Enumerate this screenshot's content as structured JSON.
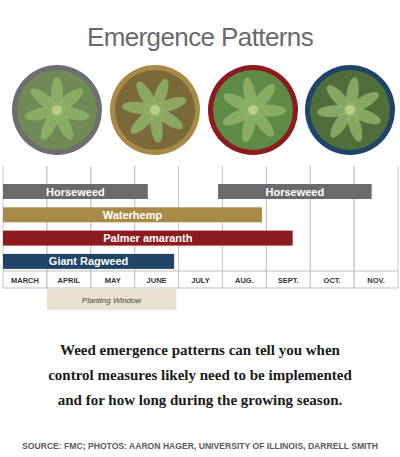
{
  "chart_data": {
    "type": "range_bar",
    "orientation": "horizontal",
    "title": "Emergence Patterns",
    "xlim": [
      0,
      9
    ],
    "xticks": [
      {
        "value": 0.5,
        "label": "MARCH"
      },
      {
        "value": 1.5,
        "label": "APRIL"
      },
      {
        "value": 2.5,
        "label": "MAY"
      },
      {
        "value": 3.5,
        "label": "JUNE"
      },
      {
        "value": 4.5,
        "label": "JULY"
      },
      {
        "value": 5.5,
        "label": "AUG."
      },
      {
        "value": 6.5,
        "label": "SEPT."
      },
      {
        "value": 7.5,
        "label": "OCT."
      },
      {
        "value": 8.5,
        "label": "NOV."
      }
    ],
    "grid": true,
    "series": [
      {
        "name": "Horseweed",
        "color": "#6b6b6d",
        "ranges": [
          [
            0,
            3.3
          ],
          [
            4.9,
            8.4
          ]
        ]
      },
      {
        "name": "Waterhemp",
        "color": "#a98a47",
        "ranges": [
          [
            0,
            5.9
          ]
        ]
      },
      {
        "name": "Palmer amaranth",
        "color": "#8c1b20",
        "ranges": [
          [
            0,
            6.6
          ]
        ]
      },
      {
        "name": "Giant Ragweed",
        "color": "#1f4468",
        "ranges": [
          [
            0,
            3.9
          ]
        ]
      }
    ],
    "planting_window": {
      "label": "Planting Window",
      "start": 1,
      "end": 3.95
    },
    "caption": [
      "Weed emergence patterns can tell you when",
      "control measures likely need to be implemented",
      "and for how long during the growing season."
    ],
    "source": "SOURCE: FMC; PHOTOS: AARON HAGER, UNIVERSITY OF ILLINOIS, DARRELL SMITH"
  }
}
